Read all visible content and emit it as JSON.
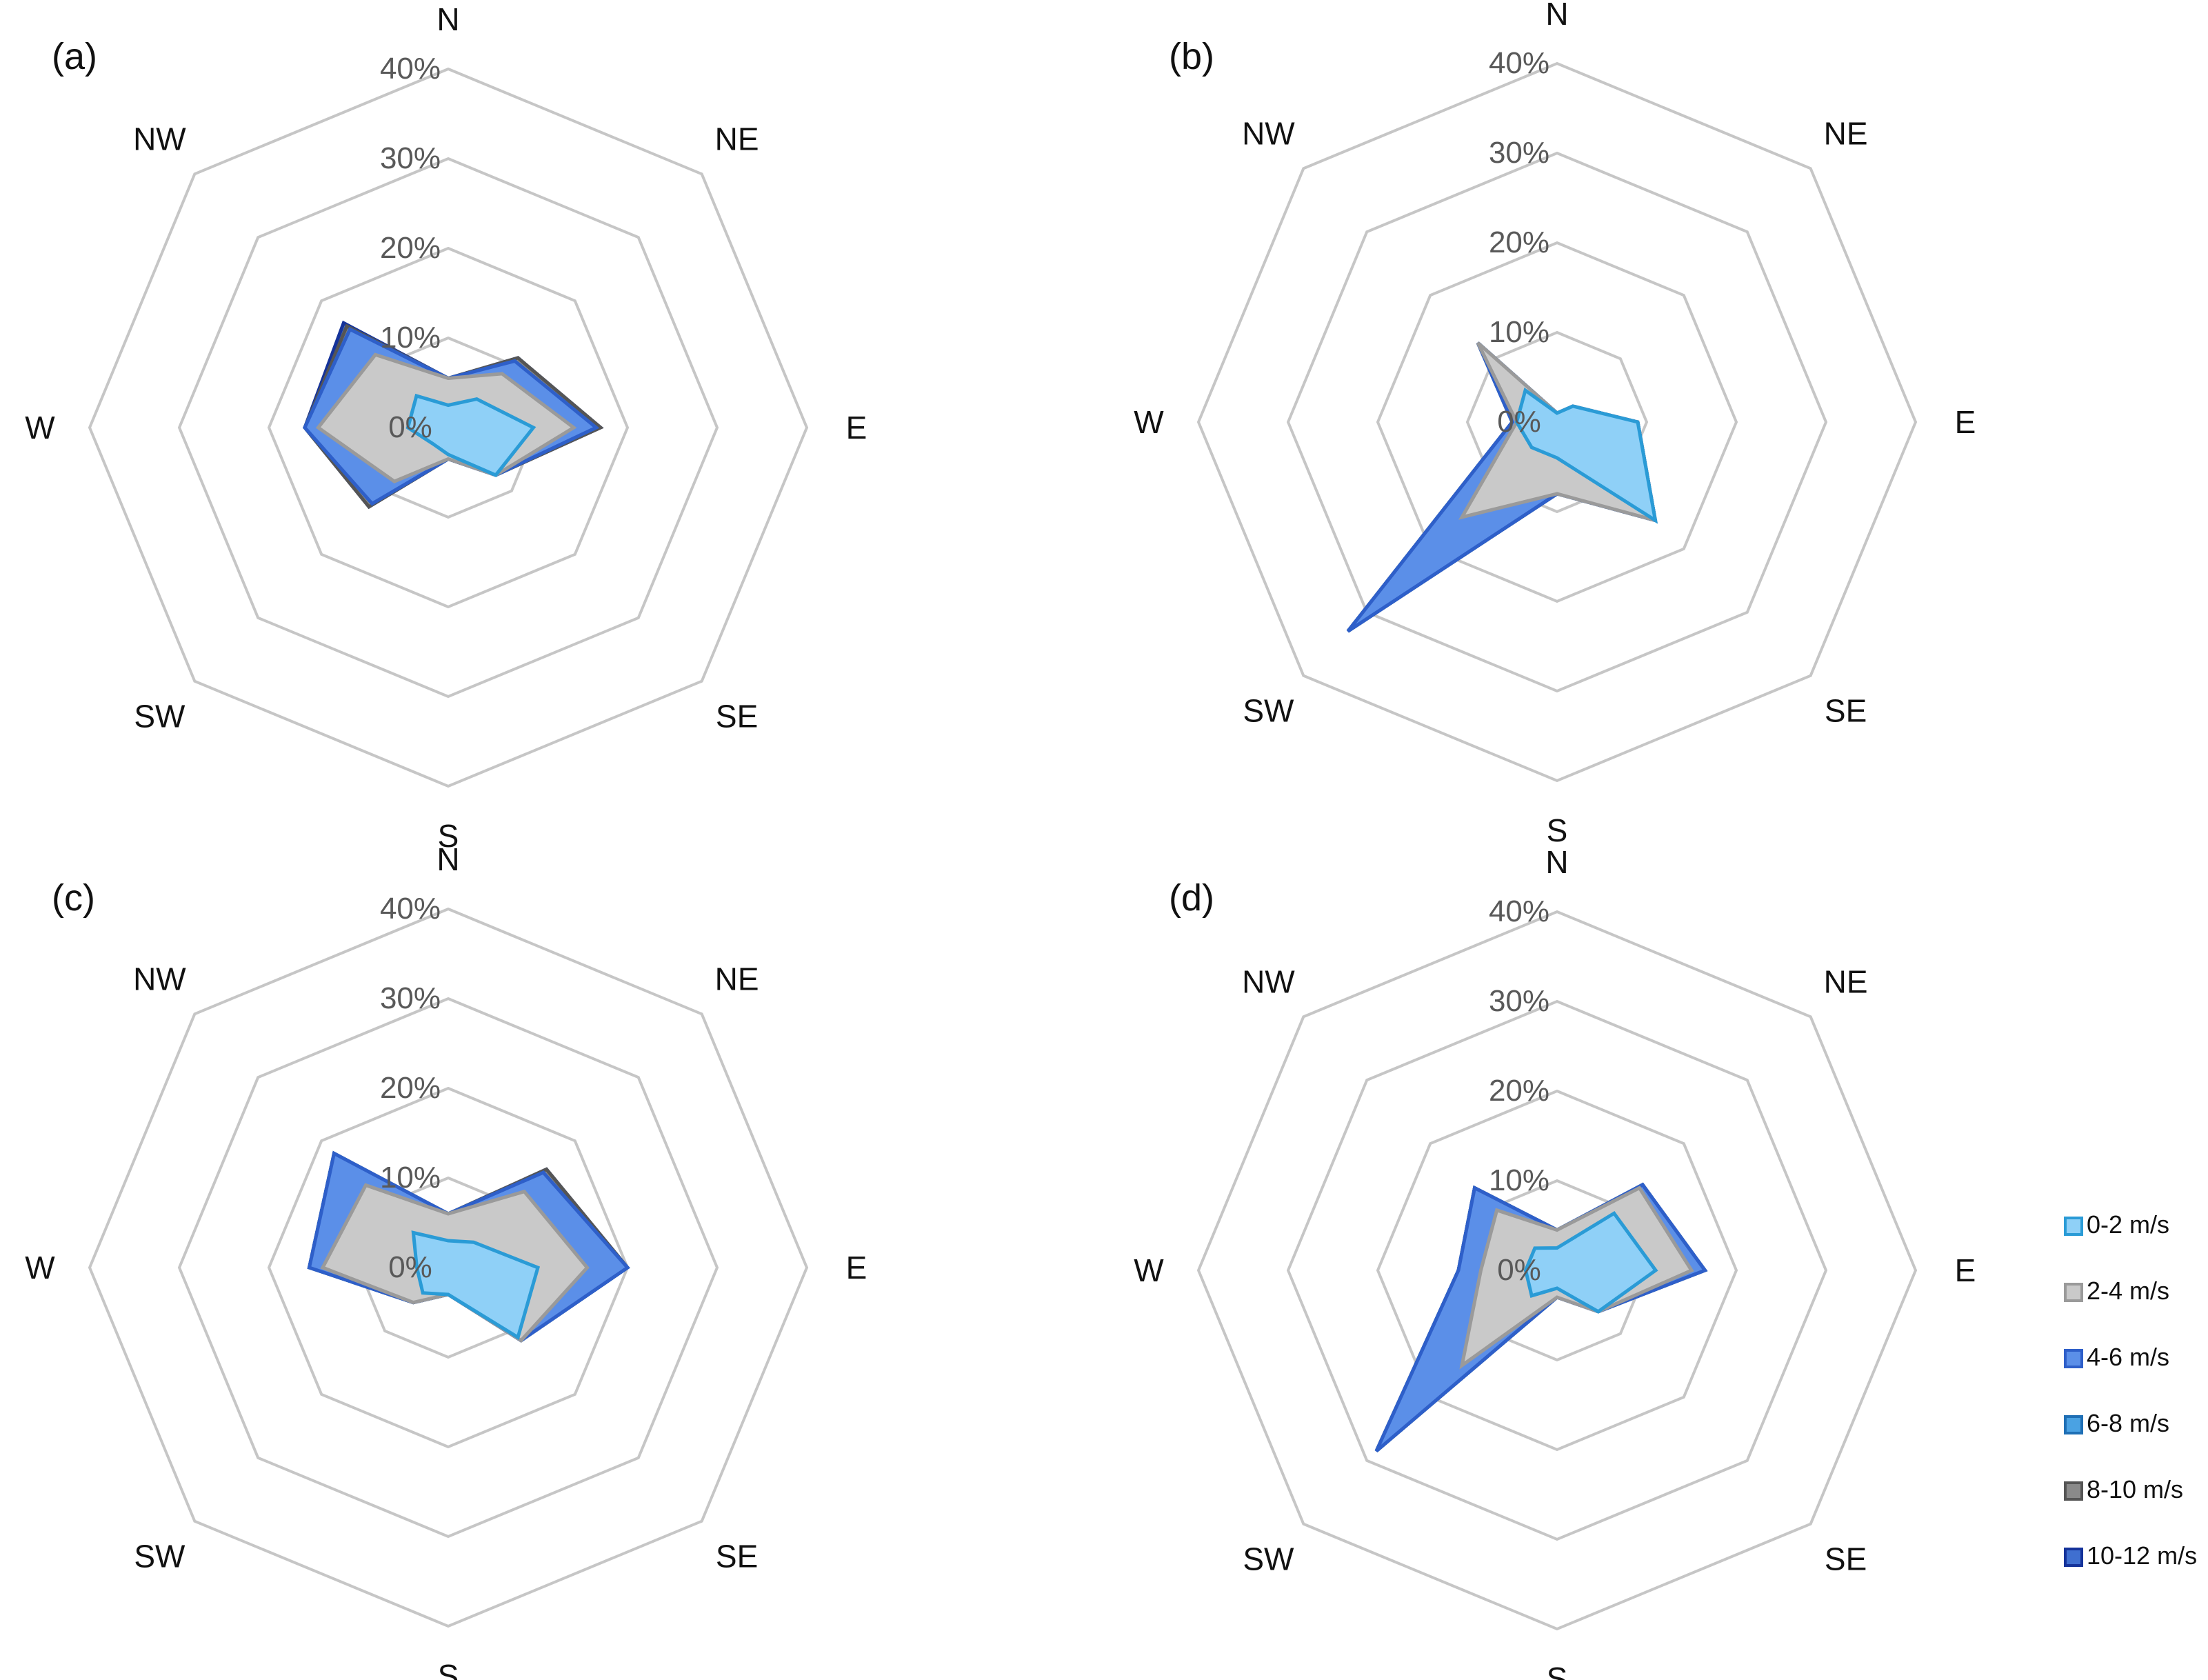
{
  "figure": {
    "ring_labels": [
      "0%",
      "10%",
      "20%",
      "30%",
      "40%"
    ],
    "directions": [
      "N",
      "NE",
      "E",
      "SE",
      "S",
      "SW",
      "W",
      "NW"
    ]
  },
  "legend": {
    "items": [
      {
        "label": "0-2 m/s",
        "fill": "#8fd0f7",
        "stroke": "#2a9bd6"
      },
      {
        "label": "2-4 m/s",
        "fill": "#c9c9c9",
        "stroke": "#9a9a9a"
      },
      {
        "label": "4-6 m/s",
        "fill": "#5b8fe8",
        "stroke": "#2e5fc9"
      },
      {
        "label": "6-8 m/s",
        "fill": "#4aa2e3",
        "stroke": "#1f6fb5"
      },
      {
        "label": "8-10 m/s",
        "fill": "#8a8a8a",
        "stroke": "#555555"
      },
      {
        "label": "10-12 m/s",
        "fill": "#3f6fd0",
        "stroke": "#15339a"
      }
    ]
  },
  "chart_data": [
    {
      "type": "radar",
      "panel": "(a)",
      "categories": [
        "N",
        "NE",
        "E",
        "SE",
        "S",
        "SW",
        "W",
        "NW"
      ],
      "rlim": [
        0,
        40
      ],
      "rticks": [
        0,
        10,
        20,
        30,
        40
      ],
      "series": [
        {
          "name": "0-2 m/s",
          "values": [
            2.5,
            4.5,
            9.5,
            7.5,
            3,
            2.5,
            4.5,
            5
          ]
        },
        {
          "name": "2-4 m/s",
          "values": [
            5.5,
            8.5,
            14,
            7.5,
            3.5,
            8.5,
            14.5,
            11.5
          ]
        },
        {
          "name": "4-6 m/s",
          "values": [
            5.5,
            10.5,
            16.5,
            7.5,
            3.5,
            12,
            16,
            15.5
          ]
        },
        {
          "name": "6-8 m/s",
          "values": [
            5.5,
            10.5,
            16.5,
            7.5,
            3.5,
            12,
            16,
            15.5
          ]
        },
        {
          "name": "8-10 m/s",
          "values": [
            5.5,
            11,
            17,
            7.5,
            3.5,
            12.5,
            16,
            16
          ]
        },
        {
          "name": "10-12 m/s",
          "values": [
            5.5,
            11,
            17,
            7.5,
            3.5,
            12.5,
            16,
            16.5
          ]
        }
      ]
    },
    {
      "type": "radar",
      "panel": "(b)",
      "categories": [
        "N",
        "NE",
        "E",
        "SE",
        "S",
        "SW",
        "W",
        "NW"
      ],
      "rlim": [
        0,
        40
      ],
      "rticks": [
        0,
        10,
        20,
        30,
        40
      ],
      "series": [
        {
          "name": "0-2 m/s",
          "values": [
            1,
            2.5,
            9,
            15.5,
            4,
            4,
            4.5,
            5
          ]
        },
        {
          "name": "2-4 m/s",
          "values": [
            1,
            2.5,
            9,
            15.5,
            8,
            15,
            4.5,
            12.5
          ]
        },
        {
          "name": "4-6 m/s",
          "values": [
            1,
            2.5,
            9,
            15.5,
            8,
            33,
            5,
            12.5
          ]
        },
        {
          "name": "6-8 m/s",
          "values": [
            1,
            2.5,
            9,
            15.5,
            8,
            33,
            5,
            12.5
          ]
        },
        {
          "name": "8-10 m/s",
          "values": [
            1,
            2.5,
            9,
            15.5,
            8,
            33,
            5,
            12.5
          ]
        },
        {
          "name": "10-12 m/s",
          "values": [
            1,
            2.5,
            9,
            15.5,
            8,
            33,
            5,
            12.5
          ]
        }
      ]
    },
    {
      "type": "radar",
      "panel": "(c)",
      "categories": [
        "N",
        "NE",
        "E",
        "SE",
        "S",
        "SW",
        "W",
        "NW"
      ],
      "rlim": [
        0,
        40
      ],
      "rticks": [
        0,
        10,
        20,
        30,
        40
      ],
      "series": [
        {
          "name": "0-2 m/s",
          "values": [
            3,
            4,
            10,
            11,
            3,
            4,
            3.5,
            5.5
          ]
        },
        {
          "name": "2-4 m/s",
          "values": [
            6,
            12,
            15.5,
            11.5,
            3,
            5.5,
            14,
            13
          ]
        },
        {
          "name": "4-6 m/s",
          "values": [
            6,
            15,
            20,
            11.5,
            3,
            5.5,
            15.5,
            18
          ]
        },
        {
          "name": "6-8 m/s",
          "values": [
            6,
            15,
            20,
            11.5,
            3,
            5.5,
            15.5,
            18
          ]
        },
        {
          "name": "8-10 m/s",
          "values": [
            6,
            15.5,
            20,
            11.5,
            3,
            5.5,
            15.5,
            18
          ]
        },
        {
          "name": "10-12 m/s",
          "values": [
            6,
            15.5,
            20,
            11.5,
            3,
            5.5,
            15.5,
            18
          ]
        }
      ]
    },
    {
      "type": "radar",
      "panel": "(d)",
      "categories": [
        "N",
        "NE",
        "E",
        "SE",
        "S",
        "SW",
        "W",
        "NW"
      ],
      "rlim": [
        0,
        40
      ],
      "rticks": [
        0,
        10,
        20,
        30,
        40
      ],
      "series": [
        {
          "name": "0-2 m/s",
          "values": [
            2.5,
            9,
            11,
            6.5,
            2,
            4,
            3.5,
            3.5
          ]
        },
        {
          "name": "2-4 m/s",
          "values": [
            4.5,
            13,
            15,
            6.5,
            3,
            15,
            8.5,
            9.5
          ]
        },
        {
          "name": "4-6 m/s",
          "values": [
            4.5,
            13.5,
            16.5,
            6.5,
            3,
            28.5,
            11,
            13
          ]
        },
        {
          "name": "6-8 m/s",
          "values": [
            4.5,
            13.5,
            16.5,
            6.5,
            3,
            28.5,
            11,
            13
          ]
        },
        {
          "name": "8-10 m/s",
          "values": [
            4.5,
            13.5,
            16.5,
            6.5,
            3,
            28.5,
            11,
            13
          ]
        },
        {
          "name": "10-12 m/s",
          "values": [
            4.5,
            13.5,
            16.5,
            6.5,
            3,
            28.5,
            11,
            13
          ]
        }
      ]
    }
  ]
}
